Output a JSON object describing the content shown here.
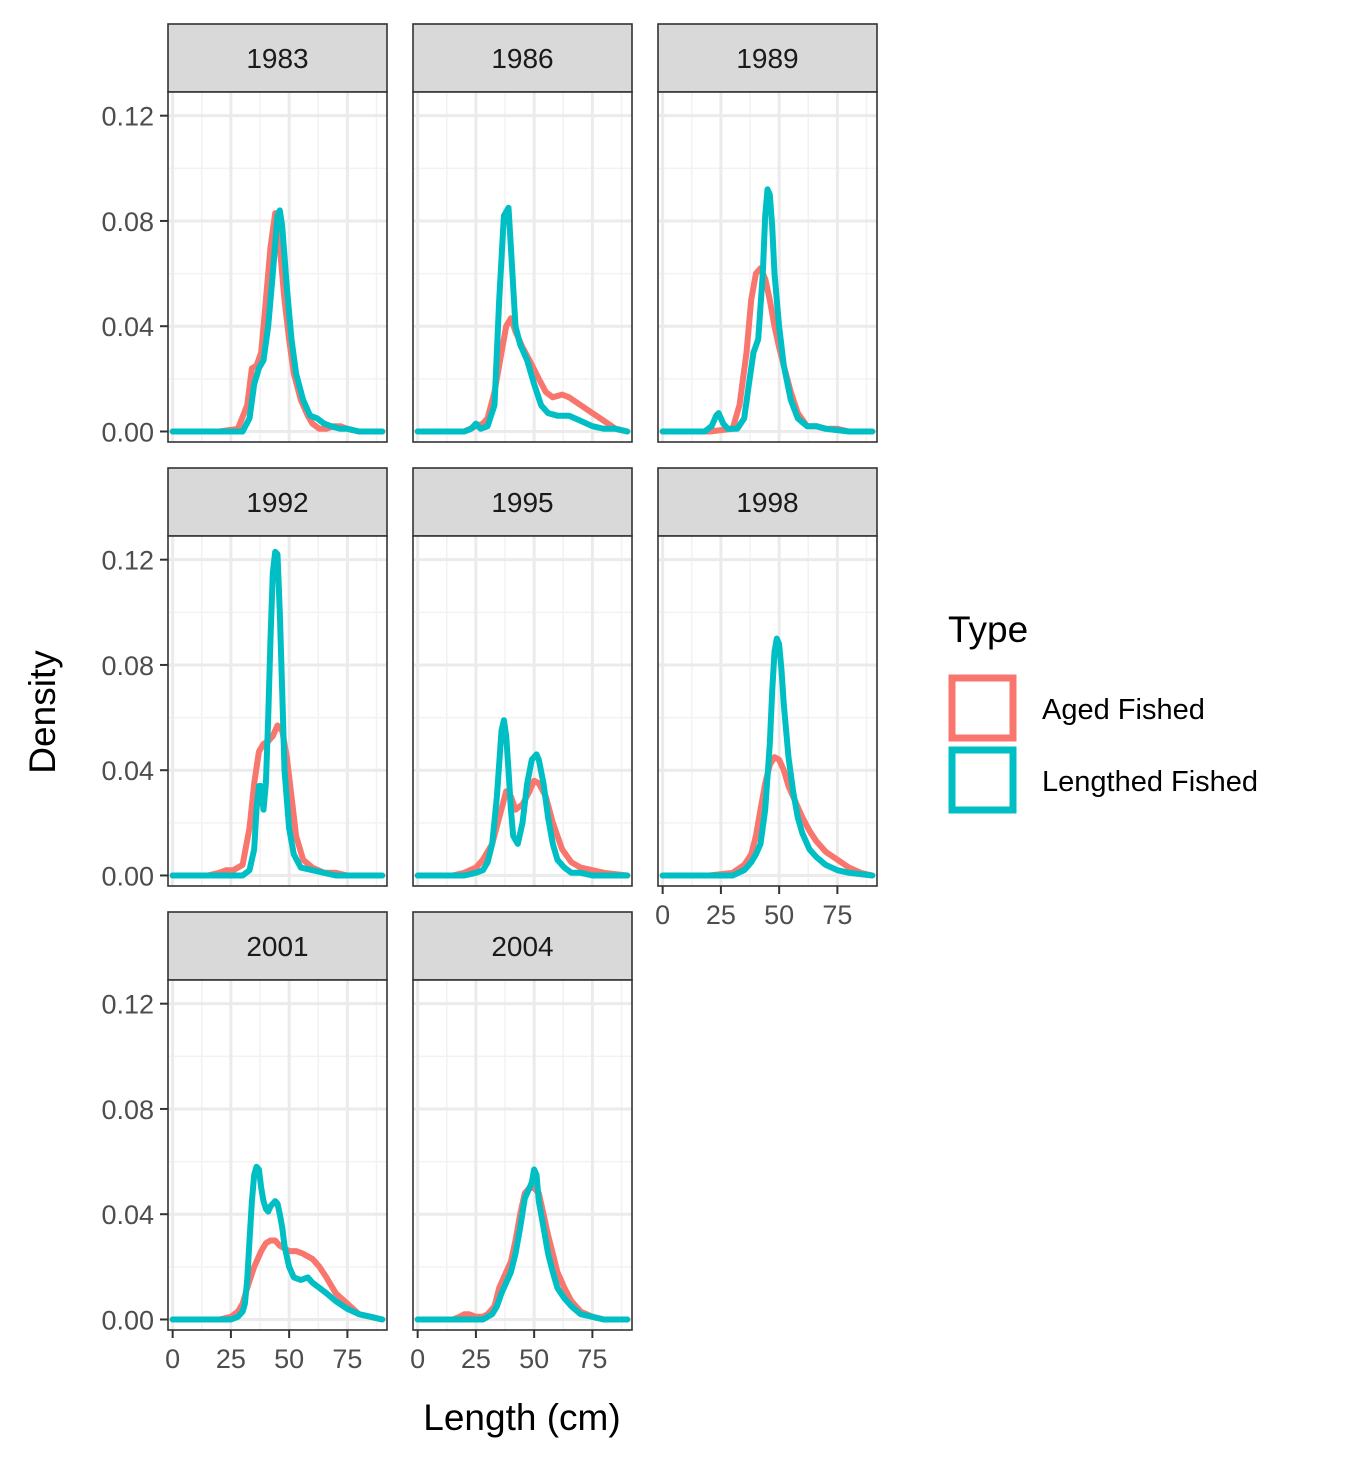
{
  "chart_data": {
    "type": "line",
    "xlabel": "Length (cm)",
    "ylabel": "Density",
    "xlim": [
      -2,
      92
    ],
    "ylim": [
      -0.004,
      0.129
    ],
    "x_ticks": [
      0,
      25,
      50,
      75
    ],
    "x_tick_labels": [
      "0",
      "25",
      "50",
      "75"
    ],
    "y_ticks": [
      0.0,
      0.04,
      0.08,
      0.12
    ],
    "y_tick_labels": [
      "0.00",
      "0.04",
      "0.08",
      "0.12"
    ],
    "grid": true,
    "legend": {
      "title": "Type",
      "position": "right",
      "entries": [
        {
          "label": "Aged Fished",
          "color": "#F8766D"
        },
        {
          "label": "Lengthed Fished",
          "color": "#00BFC4"
        }
      ]
    },
    "panels": [
      {
        "year": "1983",
        "series": [
          {
            "name": "Aged Fished",
            "color": "#F8766D",
            "x": [
              0,
              20,
              28,
              32,
              34,
              36,
              38,
              40,
              42,
              44,
              46,
              48,
              50,
              52,
              55,
              58,
              60,
              63,
              66,
              69,
              72,
              75,
              80,
              90
            ],
            "y": [
              0,
              0,
              0.001,
              0.01,
              0.024,
              0.025,
              0.03,
              0.05,
              0.07,
              0.083,
              0.07,
              0.05,
              0.035,
              0.022,
              0.012,
              0.006,
              0.003,
              0.001,
              0.001,
              0.002,
              0.002,
              0.001,
              0,
              0
            ]
          },
          {
            "name": "Lengthed Fished",
            "color": "#00BFC4",
            "x": [
              0,
              20,
              30,
              33,
              35,
              37,
              39,
              41,
              43,
              45,
              46,
              47,
              49,
              51,
              53,
              56,
              59,
              62,
              65,
              68,
              72,
              75,
              80,
              90
            ],
            "y": [
              0,
              0,
              0,
              0.005,
              0.018,
              0.024,
              0.027,
              0.04,
              0.06,
              0.082,
              0.084,
              0.078,
              0.055,
              0.035,
              0.022,
              0.012,
              0.006,
              0.005,
              0.003,
              0.002,
              0.001,
              0.001,
              0,
              0
            ]
          }
        ]
      },
      {
        "year": "1986",
        "series": [
          {
            "name": "Aged Fished",
            "color": "#F8766D",
            "x": [
              0,
              20,
              25,
              28,
              30,
              33,
              36,
              38,
              40,
              42,
              45,
              48,
              52,
              55,
              58,
              62,
              65,
              70,
              75,
              80,
              85,
              90
            ],
            "y": [
              0,
              0,
              0.002,
              0.003,
              0.005,
              0.015,
              0.03,
              0.04,
              0.043,
              0.038,
              0.032,
              0.027,
              0.02,
              0.015,
              0.013,
              0.014,
              0.013,
              0.01,
              0.007,
              0.004,
              0.001,
              0
            ]
          },
          {
            "name": "Lengthed Fished",
            "color": "#00BFC4",
            "x": [
              0,
              20,
              23,
              25,
              27,
              30,
              33,
              35,
              37,
              39,
              40,
              42,
              44,
              47,
              50,
              53,
              56,
              60,
              65,
              70,
              75,
              80,
              85,
              90
            ],
            "y": [
              0,
              0,
              0.001,
              0.003,
              0.001,
              0.002,
              0.01,
              0.05,
              0.082,
              0.085,
              0.07,
              0.04,
              0.033,
              0.027,
              0.018,
              0.01,
              0.007,
              0.006,
              0.006,
              0.004,
              0.002,
              0.001,
              0.001,
              0
            ]
          },
          {
            "name": "",
            "color": "",
            "x": [],
            "y": []
          }
        ]
      },
      {
        "year": "1989",
        "series": [
          {
            "name": "Aged Fished",
            "color": "#F8766D",
            "x": [
              0,
              20,
              30,
              33,
              36,
              38,
              40,
              42,
              44,
              46,
              48,
              50,
              52,
              55,
              58,
              62,
              66,
              70,
              75,
              80,
              90
            ],
            "y": [
              0,
              0,
              0.001,
              0.01,
              0.03,
              0.05,
              0.06,
              0.062,
              0.058,
              0.05,
              0.04,
              0.032,
              0.025,
              0.015,
              0.007,
              0.002,
              0.002,
              0.001,
              0.001,
              0,
              0
            ]
          },
          {
            "name": "Lengthed Fished",
            "color": "#00BFC4",
            "x": [
              0,
              18,
              21,
              23,
              24,
              26,
              28,
              32,
              35,
              37,
              39,
              41,
              43,
              44,
              45,
              46,
              47,
              48,
              50,
              52,
              55,
              58,
              62,
              66,
              70,
              80,
              90
            ],
            "y": [
              0,
              0,
              0.002,
              0.006,
              0.007,
              0.003,
              0.001,
              0.001,
              0.005,
              0.018,
              0.03,
              0.035,
              0.06,
              0.082,
              0.092,
              0.09,
              0.078,
              0.06,
              0.04,
              0.025,
              0.012,
              0.005,
              0.002,
              0.002,
              0.001,
              0,
              0
            ]
          }
        ]
      },
      {
        "year": "1992",
        "series": [
          {
            "name": "Aged Fished",
            "color": "#F8766D",
            "x": [
              0,
              15,
              20,
              23,
              26,
              30,
              33,
              35,
              37,
              39,
              41,
              43,
              45,
              47,
              49,
              51,
              53,
              56,
              60,
              65,
              70,
              75,
              90
            ],
            "y": [
              0,
              0,
              0.001,
              0.002,
              0.002,
              0.004,
              0.018,
              0.035,
              0.047,
              0.05,
              0.051,
              0.053,
              0.057,
              0.055,
              0.045,
              0.03,
              0.015,
              0.006,
              0.003,
              0.001,
              0.001,
              0,
              0
            ]
          },
          {
            "name": "Lengthed Fished",
            "color": "#00BFC4",
            "x": [
              0,
              20,
              30,
              33,
              35,
              36,
              37,
              38,
              39,
              40,
              41,
              42,
              43,
              44,
              45,
              46,
              47,
              48,
              50,
              52,
              55,
              60,
              65,
              70,
              90
            ],
            "y": [
              0,
              0,
              0,
              0.002,
              0.01,
              0.025,
              0.034,
              0.034,
              0.025,
              0.035,
              0.06,
              0.09,
              0.115,
              0.123,
              0.122,
              0.1,
              0.07,
              0.04,
              0.018,
              0.008,
              0.003,
              0.002,
              0.001,
              0,
              0
            ]
          }
        ]
      },
      {
        "year": "1995",
        "series": [
          {
            "name": "Aged Fished",
            "color": "#F8766D",
            "x": [
              0,
              15,
              20,
              25,
              28,
              32,
              35,
              38,
              40,
              42,
              45,
              48,
              50,
              52,
              55,
              58,
              62,
              66,
              70,
              75,
              80,
              90
            ],
            "y": [
              0,
              0,
              0.001,
              0.003,
              0.006,
              0.012,
              0.022,
              0.032,
              0.03,
              0.025,
              0.027,
              0.032,
              0.036,
              0.035,
              0.03,
              0.02,
              0.01,
              0.005,
              0.003,
              0.002,
              0.001,
              0
            ]
          },
          {
            "name": "Lengthed Fished",
            "color": "#00BFC4",
            "x": [
              0,
              20,
              25,
              28,
              30,
              32,
              34,
              36,
              37,
              38,
              39,
              40,
              41,
              43,
              45,
              47,
              49,
              51,
              52,
              54,
              56,
              58,
              60,
              63,
              66,
              70,
              75,
              80,
              90
            ],
            "y": [
              0,
              0,
              0.001,
              0.002,
              0.005,
              0.012,
              0.03,
              0.055,
              0.059,
              0.053,
              0.04,
              0.025,
              0.015,
              0.012,
              0.02,
              0.035,
              0.044,
              0.046,
              0.044,
              0.035,
              0.022,
              0.012,
              0.006,
              0.003,
              0.001,
              0.001,
              0,
              0,
              0
            ]
          }
        ]
      },
      {
        "year": "1998",
        "series": [
          {
            "name": "Aged Fished",
            "color": "#F8766D",
            "x": [
              0,
              20,
              30,
              35,
              38,
              40,
              42,
              44,
              46,
              48,
              50,
              52,
              54,
              56,
              58,
              60,
              63,
              66,
              70,
              75,
              80,
              85,
              90
            ],
            "y": [
              0,
              0,
              0.001,
              0.004,
              0.008,
              0.015,
              0.025,
              0.035,
              0.042,
              0.045,
              0.044,
              0.04,
              0.034,
              0.03,
              0.026,
              0.022,
              0.017,
              0.013,
              0.009,
              0.006,
              0.003,
              0.001,
              0
            ]
          },
          {
            "name": "Lengthed Fished",
            "color": "#00BFC4",
            "x": [
              0,
              20,
              30,
              35,
              38,
              40,
              42,
              44,
              46,
              47,
              48,
              49,
              50,
              51,
              52,
              54,
              56,
              58,
              60,
              63,
              66,
              70,
              75,
              80,
              90
            ],
            "y": [
              0,
              0,
              0,
              0.002,
              0.005,
              0.008,
              0.012,
              0.025,
              0.05,
              0.07,
              0.085,
              0.09,
              0.088,
              0.078,
              0.065,
              0.045,
              0.032,
              0.022,
              0.016,
              0.01,
              0.007,
              0.004,
              0.002,
              0.001,
              0
            ]
          }
        ]
      },
      {
        "year": "2001",
        "series": [
          {
            "name": "Aged Fished",
            "color": "#F8766D",
            "x": [
              0,
              20,
              25,
              28,
              30,
              32,
              35,
              38,
              40,
              42,
              44,
              46,
              48,
              50,
              53,
              56,
              60,
              63,
              66,
              70,
              75,
              80,
              85,
              90
            ],
            "y": [
              0,
              0,
              0.001,
              0.003,
              0.006,
              0.012,
              0.02,
              0.026,
              0.029,
              0.03,
              0.03,
              0.028,
              0.027,
              0.026,
              0.026,
              0.025,
              0.023,
              0.02,
              0.016,
              0.01,
              0.006,
              0.002,
              0.001,
              0
            ]
          },
          {
            "name": "Lengthed Fished",
            "color": "#00BFC4",
            "x": [
              0,
              25,
              28,
              30,
              31,
              32,
              33,
              34,
              35,
              36,
              37,
              38,
              39,
              40,
              41,
              42,
              43,
              44,
              45,
              46,
              47,
              48,
              50,
              52,
              55,
              58,
              60,
              63,
              66,
              70,
              75,
              80,
              85,
              90
            ],
            "y": [
              0,
              0,
              0.001,
              0.003,
              0.006,
              0.015,
              0.03,
              0.045,
              0.055,
              0.058,
              0.057,
              0.05,
              0.045,
              0.042,
              0.041,
              0.043,
              0.044,
              0.045,
              0.044,
              0.04,
              0.035,
              0.028,
              0.02,
              0.016,
              0.015,
              0.016,
              0.014,
              0.012,
              0.01,
              0.007,
              0.004,
              0.002,
              0.001,
              0
            ]
          }
        ]
      },
      {
        "year": "2004",
        "series": [
          {
            "name": "Aged Fished",
            "color": "#F8766D",
            "x": [
              0,
              15,
              18,
              20,
              22,
              25,
              28,
              30,
              33,
              35,
              38,
              40,
              42,
              44,
              46,
              48,
              50,
              52,
              54,
              56,
              58,
              60,
              63,
              66,
              70,
              75,
              80,
              90
            ],
            "y": [
              0,
              0,
              0.001,
              0.002,
              0.002,
              0.001,
              0.001,
              0.002,
              0.005,
              0.012,
              0.018,
              0.022,
              0.03,
              0.04,
              0.048,
              0.05,
              0.05,
              0.048,
              0.04,
              0.032,
              0.025,
              0.018,
              0.012,
              0.007,
              0.003,
              0.001,
              0,
              0
            ]
          },
          {
            "name": "Lengthed Fished",
            "color": "#00BFC4",
            "x": [
              0,
              20,
              25,
              28,
              30,
              32,
              34,
              36,
              38,
              40,
              42,
              44,
              46,
              48,
              49,
              50,
              51,
              52,
              54,
              56,
              58,
              60,
              63,
              66,
              70,
              75,
              80,
              90
            ],
            "y": [
              0,
              0,
              0,
              0,
              0.001,
              0.002,
              0.005,
              0.01,
              0.014,
              0.018,
              0.025,
              0.035,
              0.046,
              0.05,
              0.052,
              0.057,
              0.055,
              0.045,
              0.035,
              0.025,
              0.018,
              0.012,
              0.008,
              0.005,
              0.002,
              0.001,
              0,
              0
            ]
          }
        ]
      }
    ]
  }
}
